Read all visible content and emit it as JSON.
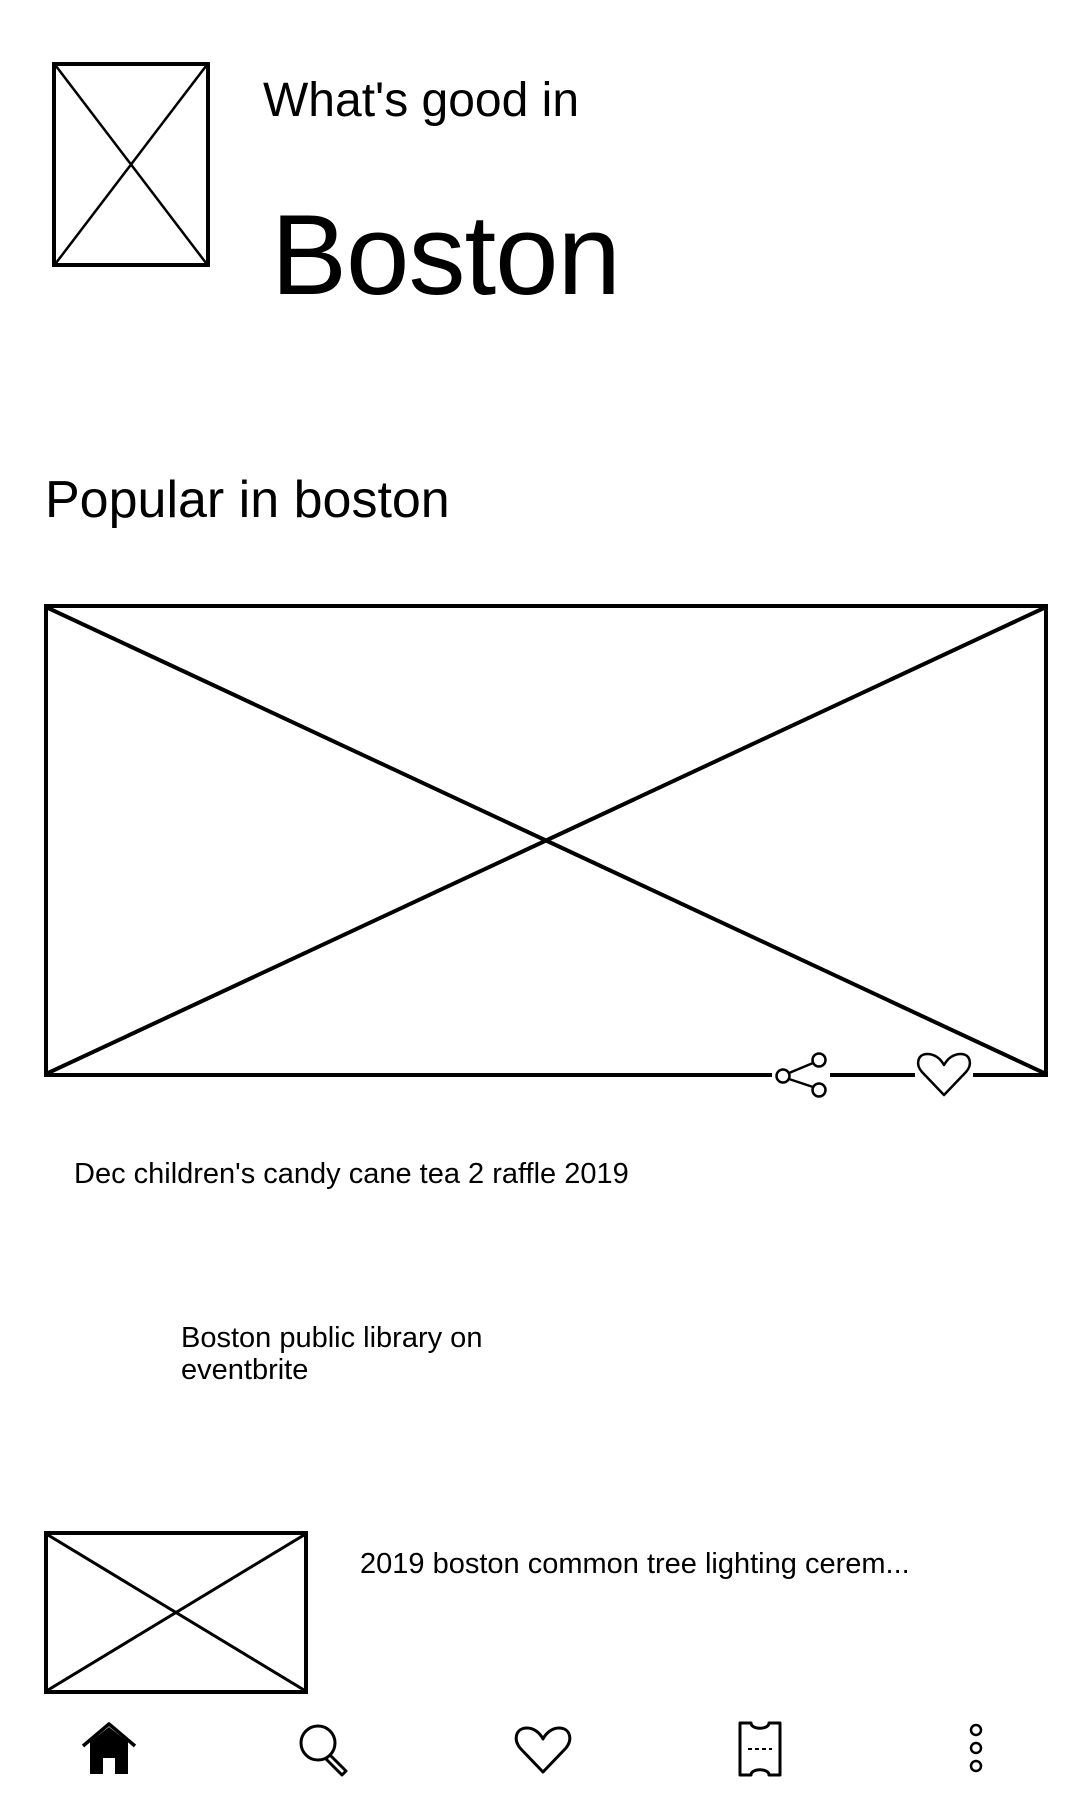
{
  "header": {
    "subtitle": "What's good in",
    "city": "Boston"
  },
  "section": {
    "title": "Popular in boston"
  },
  "featured": {
    "event_title": "Dec children's candy cane tea 2 raffle 2019",
    "organizer": "Boston public library on eventbrite"
  },
  "list": [
    {
      "title": "2019 boston common tree lighting cerem..."
    }
  ],
  "nav": {
    "items": [
      {
        "name": "home",
        "icon": "home-icon"
      },
      {
        "name": "search",
        "icon": "search-icon"
      },
      {
        "name": "likes",
        "icon": "heart-icon"
      },
      {
        "name": "tickets",
        "icon": "ticket-icon"
      },
      {
        "name": "more",
        "icon": "more-vertical-icon"
      }
    ]
  }
}
